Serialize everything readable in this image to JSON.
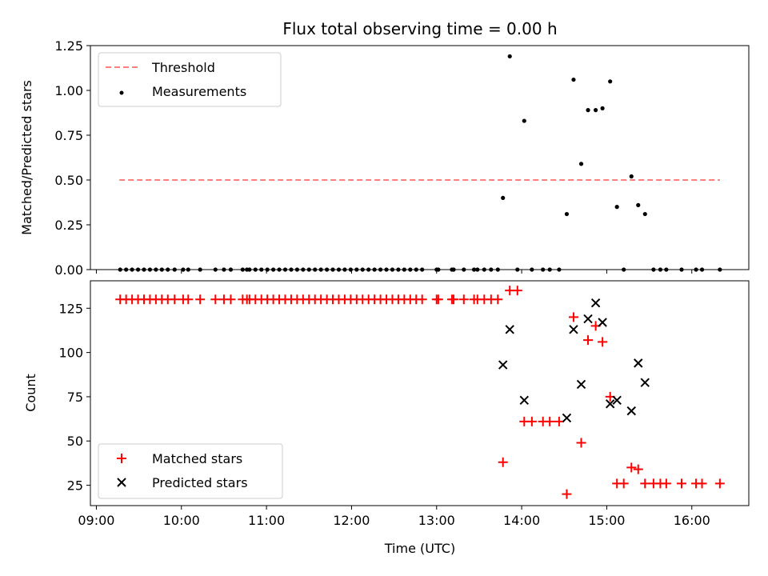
{
  "chart_data": {
    "title": "Flux total observing time = 0.00 h",
    "type": "scatter",
    "x_unit": "hours (UTC)",
    "xlabel": "Time (UTC)",
    "x_ticks": [
      "09:00",
      "10:00",
      "11:00",
      "12:00",
      "13:00",
      "14:00",
      "15:00",
      "16:00"
    ],
    "xlim": [
      8.93,
      16.67
    ],
    "panels": [
      {
        "ylabel": "Matched/Predicted stars",
        "ylim": [
          0.0,
          1.25
        ],
        "y_ticks": [
          "0.00",
          "0.25",
          "0.50",
          "0.75",
          "1.00",
          "1.25"
        ],
        "legend_position": "upper-left",
        "threshold": {
          "name": "Threshold",
          "value": 0.5,
          "x_range": [
            9.27,
            16.33
          ],
          "color": "#ff7f7f",
          "style": "dashed"
        },
        "series": [
          {
            "name": "Measurements",
            "marker": "dot",
            "color": "#000000",
            "points": [
              [
                9.28,
                0
              ],
              [
                9.35,
                0
              ],
              [
                9.42,
                0
              ],
              [
                9.49,
                0
              ],
              [
                9.56,
                0
              ],
              [
                9.63,
                0
              ],
              [
                9.7,
                0
              ],
              [
                9.77,
                0
              ],
              [
                9.84,
                0
              ],
              [
                9.92,
                0
              ],
              [
                10.02,
                0
              ],
              [
                10.08,
                0
              ],
              [
                10.22,
                0
              ],
              [
                10.4,
                0
              ],
              [
                10.5,
                0
              ],
              [
                10.58,
                0
              ],
              [
                10.72,
                0
              ],
              [
                10.77,
                0
              ],
              [
                10.8,
                0
              ],
              [
                10.87,
                0
              ],
              [
                10.94,
                0
              ],
              [
                11.01,
                0
              ],
              [
                11.08,
                0
              ],
              [
                11.15,
                0
              ],
              [
                11.22,
                0
              ],
              [
                11.29,
                0
              ],
              [
                11.36,
                0
              ],
              [
                11.43,
                0
              ],
              [
                11.5,
                0
              ],
              [
                11.57,
                0
              ],
              [
                11.64,
                0
              ],
              [
                11.71,
                0
              ],
              [
                11.78,
                0
              ],
              [
                11.85,
                0
              ],
              [
                11.92,
                0
              ],
              [
                11.99,
                0
              ],
              [
                12.06,
                0
              ],
              [
                12.13,
                0
              ],
              [
                12.2,
                0
              ],
              [
                12.27,
                0
              ],
              [
                12.34,
                0
              ],
              [
                12.41,
                0
              ],
              [
                12.48,
                0
              ],
              [
                12.55,
                0
              ],
              [
                12.62,
                0
              ],
              [
                12.69,
                0
              ],
              [
                12.76,
                0
              ],
              [
                12.83,
                0
              ],
              [
                13.0,
                0
              ],
              [
                13.02,
                0
              ],
              [
                13.18,
                0
              ],
              [
                13.2,
                0
              ],
              [
                13.32,
                0
              ],
              [
                13.44,
                0
              ],
              [
                13.48,
                0
              ],
              [
                13.56,
                0
              ],
              [
                13.64,
                0
              ],
              [
                13.72,
                0
              ],
              [
                13.78,
                0.4
              ],
              [
                13.86,
                1.19
              ],
              [
                13.95,
                0
              ],
              [
                14.03,
                0.83
              ],
              [
                14.12,
                0
              ],
              [
                14.25,
                0
              ],
              [
                14.33,
                0
              ],
              [
                14.44,
                0
              ],
              [
                14.53,
                0.31
              ],
              [
                14.61,
                1.06
              ],
              [
                14.7,
                0.59
              ],
              [
                14.78,
                0.89
              ],
              [
                14.87,
                0.89
              ],
              [
                14.95,
                0.9
              ],
              [
                15.04,
                1.05
              ],
              [
                15.12,
                0.35
              ],
              [
                15.2,
                0
              ],
              [
                15.29,
                0.52
              ],
              [
                15.37,
                0.36
              ],
              [
                15.45,
                0.31
              ],
              [
                15.55,
                0
              ],
              [
                15.63,
                0
              ],
              [
                15.7,
                0
              ],
              [
                15.88,
                0
              ],
              [
                16.05,
                0
              ],
              [
                16.12,
                0
              ],
              [
                16.33,
                0
              ]
            ]
          }
        ]
      },
      {
        "ylabel": "Count",
        "ylim": [
          13.5,
          140.5
        ],
        "y_ticks": [
          "25",
          "50",
          "75",
          "100",
          "125"
        ],
        "legend_position": "lower-left",
        "series": [
          {
            "name": "Matched stars",
            "marker": "plus",
            "color": "#ff0000",
            "points": [
              [
                9.28,
                130
              ],
              [
                9.35,
                130
              ],
              [
                9.42,
                130
              ],
              [
                9.49,
                130
              ],
              [
                9.56,
                130
              ],
              [
                9.63,
                130
              ],
              [
                9.7,
                130
              ],
              [
                9.77,
                130
              ],
              [
                9.84,
                130
              ],
              [
                9.92,
                130
              ],
              [
                10.02,
                130
              ],
              [
                10.08,
                130
              ],
              [
                10.22,
                130
              ],
              [
                10.4,
                130
              ],
              [
                10.5,
                130
              ],
              [
                10.58,
                130
              ],
              [
                10.72,
                130
              ],
              [
                10.77,
                130
              ],
              [
                10.8,
                130
              ],
              [
                10.87,
                130
              ],
              [
                10.94,
                130
              ],
              [
                11.01,
                130
              ],
              [
                11.08,
                130
              ],
              [
                11.15,
                130
              ],
              [
                11.22,
                130
              ],
              [
                11.29,
                130
              ],
              [
                11.36,
                130
              ],
              [
                11.43,
                130
              ],
              [
                11.5,
                130
              ],
              [
                11.57,
                130
              ],
              [
                11.64,
                130
              ],
              [
                11.71,
                130
              ],
              [
                11.78,
                130
              ],
              [
                11.85,
                130
              ],
              [
                11.92,
                130
              ],
              [
                11.99,
                130
              ],
              [
                12.06,
                130
              ],
              [
                12.13,
                130
              ],
              [
                12.2,
                130
              ],
              [
                12.27,
                130
              ],
              [
                12.34,
                130
              ],
              [
                12.41,
                130
              ],
              [
                12.48,
                130
              ],
              [
                12.55,
                130
              ],
              [
                12.62,
                130
              ],
              [
                12.69,
                130
              ],
              [
                12.76,
                130
              ],
              [
                12.83,
                130
              ],
              [
                13.0,
                130
              ],
              [
                13.02,
                130
              ],
              [
                13.18,
                130
              ],
              [
                13.2,
                130
              ],
              [
                13.32,
                130
              ],
              [
                13.44,
                130
              ],
              [
                13.48,
                130
              ],
              [
                13.56,
                130
              ],
              [
                13.64,
                130
              ],
              [
                13.72,
                130
              ],
              [
                13.78,
                38
              ],
              [
                13.86,
                135
              ],
              [
                13.95,
                135
              ],
              [
                14.03,
                61
              ],
              [
                14.12,
                61
              ],
              [
                14.25,
                61
              ],
              [
                14.33,
                61
              ],
              [
                14.44,
                61
              ],
              [
                14.53,
                20
              ],
              [
                14.61,
                120
              ],
              [
                14.7,
                49
              ],
              [
                14.78,
                107
              ],
              [
                14.87,
                115
              ],
              [
                14.95,
                106
              ],
              [
                15.04,
                75
              ],
              [
                15.12,
                26
              ],
              [
                15.2,
                26
              ],
              [
                15.29,
                35
              ],
              [
                15.37,
                34
              ],
              [
                15.45,
                26
              ],
              [
                15.55,
                26
              ],
              [
                15.63,
                26
              ],
              [
                15.7,
                26
              ],
              [
                15.88,
                26
              ],
              [
                16.05,
                26
              ],
              [
                16.12,
                26
              ],
              [
                16.33,
                26
              ]
            ]
          },
          {
            "name": "Predicted stars",
            "marker": "x",
            "color": "#000000",
            "points": [
              [
                13.78,
                93
              ],
              [
                13.86,
                113
              ],
              [
                14.03,
                73
              ],
              [
                14.53,
                63
              ],
              [
                14.61,
                113
              ],
              [
                14.7,
                82
              ],
              [
                14.78,
                119
              ],
              [
                14.87,
                128
              ],
              [
                14.95,
                117
              ],
              [
                15.04,
                71
              ],
              [
                15.12,
                73
              ],
              [
                15.29,
                67
              ],
              [
                15.37,
                94
              ],
              [
                15.45,
                83
              ]
            ]
          }
        ]
      }
    ]
  }
}
